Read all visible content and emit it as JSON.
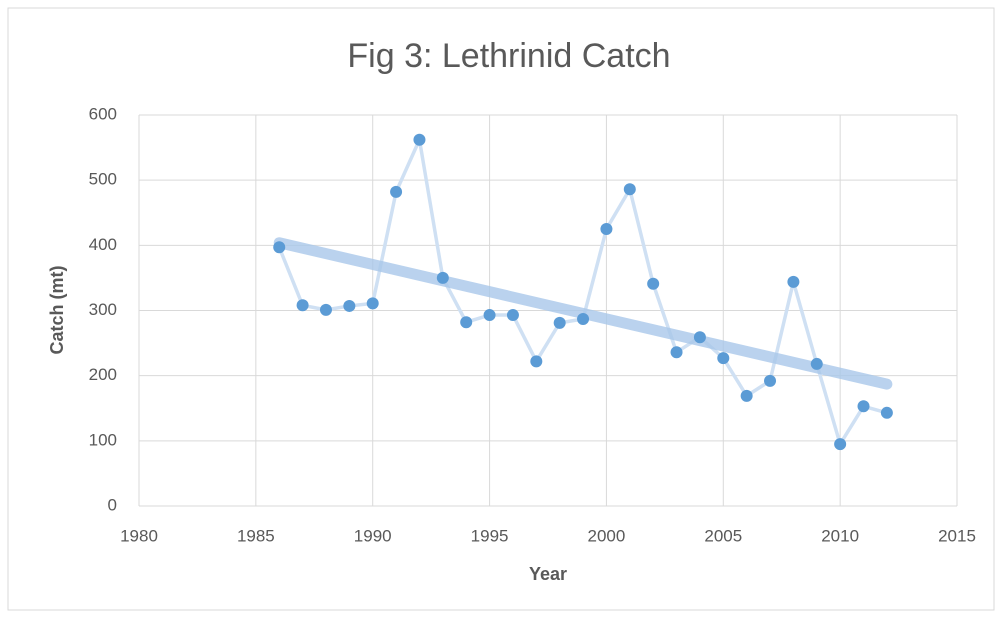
{
  "chart_data": {
    "type": "line",
    "title": "Fig 3: Lethrinid  Catch",
    "xlabel": "Year",
    "ylabel": "Catch (mt)",
    "x": [
      1986,
      1987,
      1988,
      1989,
      1990,
      1991,
      1992,
      1993,
      1994,
      1995,
      1996,
      1997,
      1998,
      1999,
      2000,
      2001,
      2002,
      2003,
      2004,
      2005,
      2006,
      2007,
      2008,
      2009,
      2010,
      2011,
      2012
    ],
    "series": [
      {
        "color": "#5b9bd5",
        "line_color": "#cfe0f3",
        "values": [
          397,
          308,
          301,
          307,
          311,
          482,
          562,
          350,
          282,
          293,
          293,
          222,
          281,
          287,
          425,
          486,
          341,
          236,
          259,
          227,
          169,
          192,
          344,
          218,
          95,
          153,
          143
        ]
      }
    ],
    "trendline": {
      "x": [
        1986,
        2012
      ],
      "values": [
        404,
        187
      ],
      "color": "#a9c8ea"
    },
    "xlim": [
      1980,
      2015
    ],
    "xticks": [
      1980,
      1985,
      1990,
      1995,
      2000,
      2005,
      2010,
      2015
    ],
    "ylim": [
      0,
      600
    ],
    "yticks": [
      0,
      100,
      200,
      300,
      400,
      500,
      600
    ],
    "grid": true
  }
}
